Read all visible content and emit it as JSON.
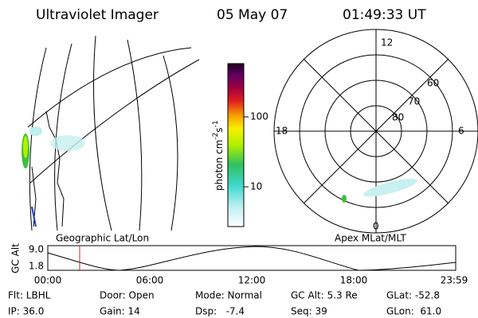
{
  "header": {
    "instrument": "Ultraviolet Imager",
    "date": "05 May 07",
    "time": "01:49:33 UT"
  },
  "colorbar": {
    "label": {
      "base": "photon cm",
      "exp1": "-2",
      "unit2": "s",
      "exp2": "-1"
    },
    "ticks": [
      "100",
      "10"
    ]
  },
  "polar": {
    "mlt_labels": [
      "12",
      "6",
      "18",
      "0"
    ],
    "lat_labels": [
      "60",
      "70",
      "80"
    ]
  },
  "panels": {
    "left_title": "Geographic Lat/Lon",
    "right_title": "Apex MLat/MLT"
  },
  "altitude": {
    "label": "GC Alt",
    "yticks": [
      "9.0",
      "1.8"
    ],
    "xticks": [
      "00:00",
      "06:00",
      "12:00",
      "18:00",
      "23:59"
    ]
  },
  "footer": {
    "rows": [
      [
        "Flt: LBHL",
        "Door: Open",
        "Mode: Normal",
        "GC Alt: 5.3 Re",
        "GLat: -52.8"
      ],
      [
        "IP: 36.0",
        "Gain: 14",
        "Dsp:   -7.4",
        "Seq: 39",
        "GLon:  61.0"
      ]
    ]
  }
}
